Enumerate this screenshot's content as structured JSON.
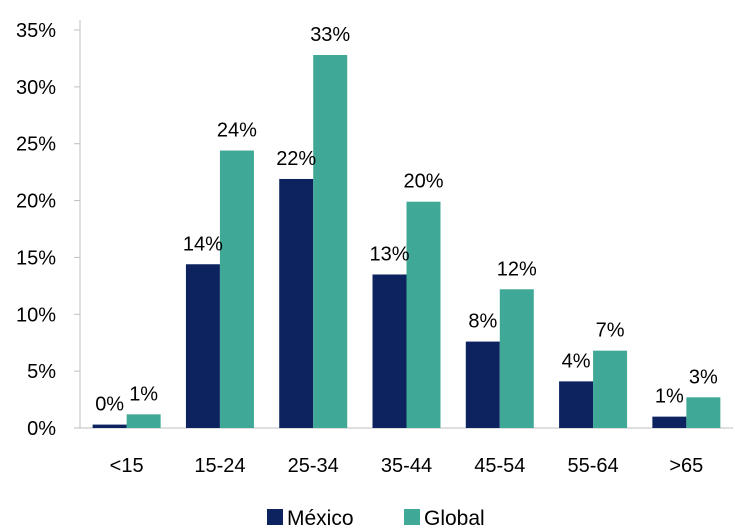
{
  "chart_data": {
    "type": "bar",
    "categories": [
      "<15",
      "15-24",
      "25-34",
      "35-44",
      "45-54",
      "55-64",
      ">65"
    ],
    "series": [
      {
        "name": "México",
        "color": "#0d2360",
        "values": [
          0.3,
          14.4,
          21.9,
          13.5,
          7.6,
          4.1,
          1.0
        ],
        "labels": [
          "0%",
          "14%",
          "22%",
          "13%",
          "8%",
          "4%",
          "1%"
        ]
      },
      {
        "name": "Global",
        "color": "#3fa896",
        "values": [
          1.2,
          24.4,
          32.8,
          19.9,
          12.2,
          6.8,
          2.7
        ],
        "labels": [
          "1%",
          "24%",
          "33%",
          "20%",
          "12%",
          "7%",
          "3%"
        ]
      }
    ],
    "y_ticks": [
      "0%",
      "5%",
      "10%",
      "15%",
      "20%",
      "25%",
      "30%",
      "35%"
    ],
    "ylim": [
      0,
      35
    ],
    "grid": false,
    "legend_position": "bottom"
  }
}
